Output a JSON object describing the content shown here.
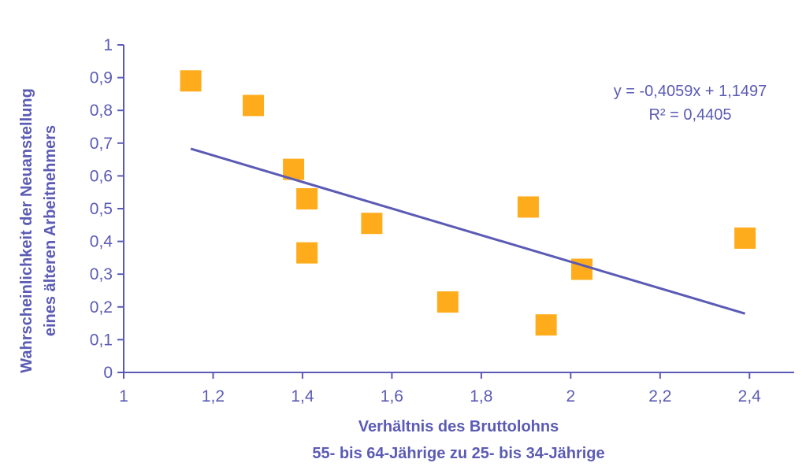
{
  "chart_data": {
    "type": "scatter",
    "xlabel": [
      "Verhältnis des Bruttolohns",
      "55- bis 64-Jährige zu 25- bis 34-Jährige"
    ],
    "ylabel": [
      "Wahrscheinlichkeit der Neuanstellung",
      "eines älteren Arbeitnehmers"
    ],
    "xlim": [
      1,
      2.5
    ],
    "ylim": [
      0,
      1
    ],
    "xticks": [
      "1",
      "1,2",
      "1,4",
      "1,6",
      "1,8",
      "2",
      "2,2",
      "2,4"
    ],
    "xtick_values": [
      1,
      1.2,
      1.4,
      1.6,
      1.8,
      2.0,
      2.2,
      2.4
    ],
    "yticks": [
      "0",
      "0,1",
      "0,2",
      "0,3",
      "0,4",
      "0,5",
      "0,6",
      "0,7",
      "0,8",
      "0,9",
      "1"
    ],
    "ytick_values": [
      0,
      0.1,
      0.2,
      0.3,
      0.4,
      0.5,
      0.6,
      0.7,
      0.8,
      0.9,
      1.0
    ],
    "grid": false,
    "points": [
      {
        "x": 1.15,
        "y": 0.89
      },
      {
        "x": 1.29,
        "y": 0.815
      },
      {
        "x": 1.38,
        "y": 0.62
      },
      {
        "x": 1.41,
        "y": 0.53
      },
      {
        "x": 1.41,
        "y": 0.365
      },
      {
        "x": 1.555,
        "y": 0.455
      },
      {
        "x": 1.725,
        "y": 0.215
      },
      {
        "x": 1.905,
        "y": 0.505
      },
      {
        "x": 1.945,
        "y": 0.145
      },
      {
        "x": 2.025,
        "y": 0.315
      },
      {
        "x": 2.39,
        "y": 0.41
      }
    ],
    "trendline": {
      "slope": -0.4059,
      "intercept": 1.1497,
      "x_range": [
        1.15,
        2.39
      ]
    },
    "annotation": {
      "line1": "y = -0,4059x + 1,1497",
      "line2": "R² = 0,4405"
    },
    "colors": {
      "marker": "#ffac1c",
      "trendline": "#5b5bb5",
      "axis": "#5b5bb5",
      "text": "#5b5bb5"
    }
  }
}
